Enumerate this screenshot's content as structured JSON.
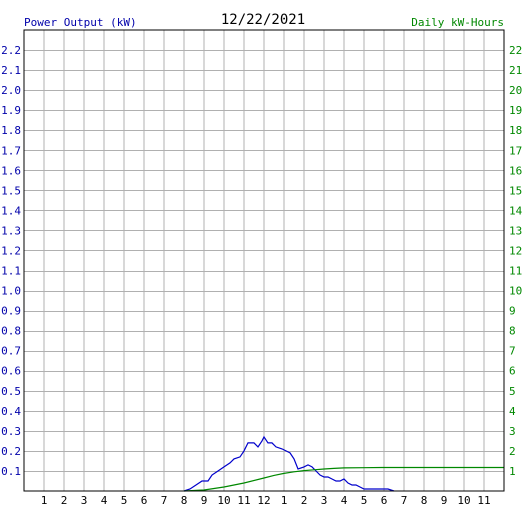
{
  "header": {
    "left_label": "Power Output (kW)",
    "date": "12/22/2021",
    "right_label": "Daily kW-Hours"
  },
  "colors": {
    "power": "#0000cc",
    "energy": "#008800",
    "grid": "#b0b0b0",
    "left_axis_text": "#0000aa",
    "right_axis_text": "#008800"
  },
  "chart_data": {
    "type": "line",
    "title": "12/22/2021",
    "x_tick_labels": [
      "1",
      "2",
      "3",
      "4",
      "5",
      "6",
      "7",
      "8",
      "9",
      "10",
      "11",
      "12",
      "1",
      "2",
      "3",
      "4",
      "5",
      "6",
      "7",
      "8",
      "9",
      "10",
      "11"
    ],
    "x_range_hours": [
      0,
      24
    ],
    "y_left": {
      "label": "Power Output (kW)",
      "range": [
        0,
        2.3
      ],
      "ticks": [
        0.1,
        0.2,
        0.3,
        0.4,
        0.5,
        0.6,
        0.7,
        0.8,
        0.9,
        1.0,
        1.1,
        1.2,
        1.3,
        1.4,
        1.5,
        1.6,
        1.7,
        1.8,
        1.9,
        2.0,
        2.1,
        2.2
      ],
      "tick_labels": [
        "0.1",
        "0.2",
        "0.3",
        "0.4",
        "0.5",
        "0.6",
        "0.7",
        "0.8",
        "0.9",
        "1.0",
        "1.1",
        "1.2",
        "1.3",
        "1.4",
        "1.5",
        "1.6",
        "1.7",
        "1.8",
        "1.9",
        "2.0",
        "2.1",
        "2.2"
      ]
    },
    "y_right": {
      "label": "Daily kW-Hours",
      "range": [
        0,
        23
      ],
      "ticks": [
        1,
        2,
        3,
        4,
        5,
        6,
        7,
        8,
        9,
        10,
        11,
        12,
        13,
        14,
        15,
        16,
        17,
        18,
        19,
        20,
        21,
        22
      ],
      "tick_labels": [
        "1",
        "2",
        "3",
        "4",
        "5",
        "6",
        "7",
        "8",
        "9",
        "10",
        "11",
        "12",
        "13",
        "14",
        "15",
        "16",
        "17",
        "18",
        "19",
        "20",
        "21",
        "22"
      ]
    },
    "grid": true,
    "series": [
      {
        "name": "Power Output (kW)",
        "axis": "left",
        "x_hours": [
          8.0,
          8.3,
          8.6,
          8.9,
          9.2,
          9.4,
          9.7,
          10.0,
          10.3,
          10.5,
          10.8,
          11.0,
          11.2,
          11.5,
          11.7,
          11.9,
          12.0,
          12.2,
          12.4,
          12.6,
          12.9,
          13.1,
          13.3,
          13.5,
          13.7,
          14.0,
          14.2,
          14.4,
          14.6,
          14.8,
          15.0,
          15.2,
          15.4,
          15.6,
          15.8,
          16.0,
          16.2,
          16.4,
          16.6,
          16.8,
          17.0,
          17.3,
          17.6,
          17.9,
          18.2,
          18.5
        ],
        "values": [
          0.0,
          0.01,
          0.03,
          0.05,
          0.05,
          0.08,
          0.1,
          0.12,
          0.14,
          0.16,
          0.17,
          0.2,
          0.24,
          0.24,
          0.22,
          0.25,
          0.27,
          0.24,
          0.24,
          0.22,
          0.21,
          0.2,
          0.19,
          0.16,
          0.11,
          0.12,
          0.13,
          0.12,
          0.1,
          0.08,
          0.07,
          0.07,
          0.06,
          0.05,
          0.05,
          0.06,
          0.04,
          0.03,
          0.03,
          0.02,
          0.01,
          0.01,
          0.01,
          0.01,
          0.01,
          0.0
        ]
      },
      {
        "name": "Daily kW-Hours",
        "axis": "right",
        "x_hours": [
          8.0,
          9.0,
          10.0,
          11.0,
          12.0,
          12.5,
          13.0,
          13.5,
          14.0,
          14.5,
          15.0,
          15.5,
          16.0,
          17.0,
          18.0,
          24.0
        ],
        "values": [
          0.0,
          0.05,
          0.2,
          0.4,
          0.65,
          0.78,
          0.88,
          0.96,
          1.02,
          1.06,
          1.1,
          1.13,
          1.15,
          1.16,
          1.17,
          1.17
        ]
      }
    ]
  }
}
